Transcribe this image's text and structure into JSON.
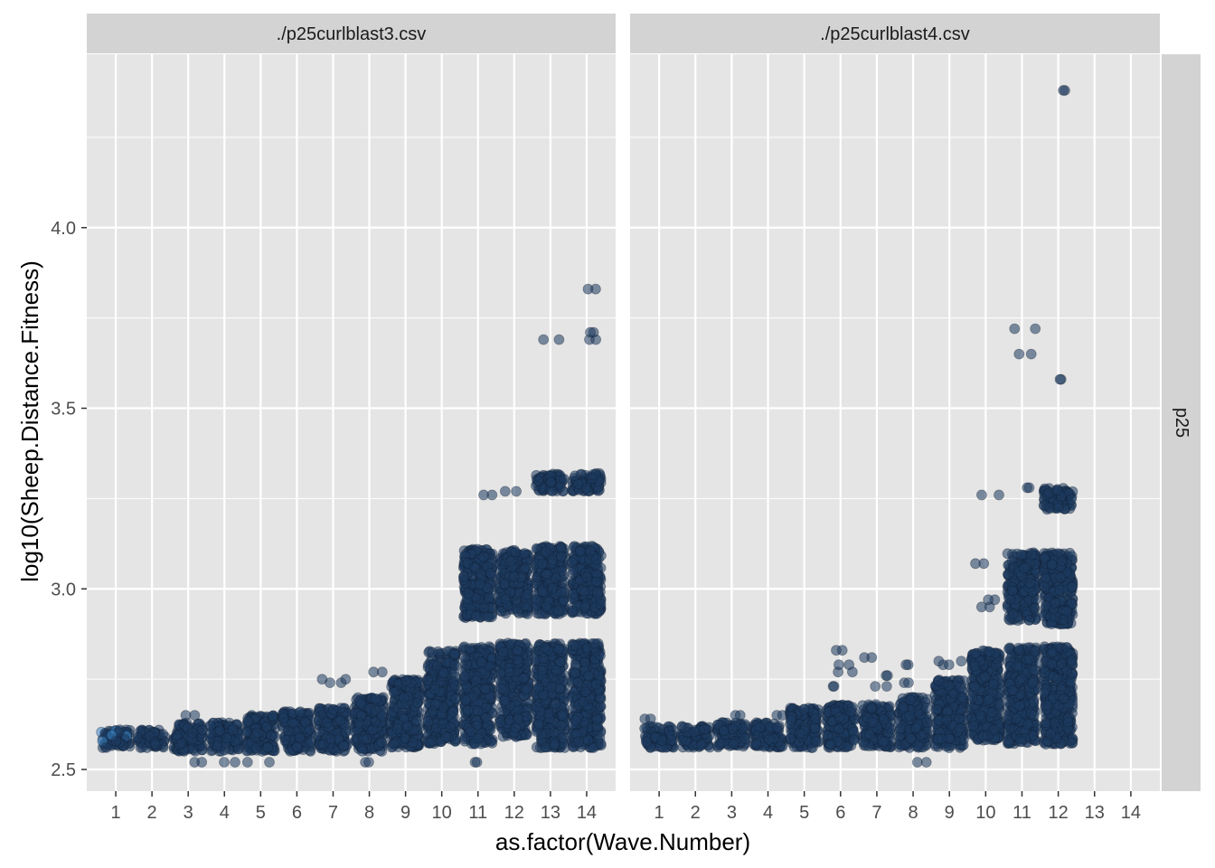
{
  "chart_data": {
    "type": "scatter",
    "subtype": "jittered strip plot, faceted",
    "xlabel": "as.factor(Wave.Number)",
    "ylabel": "log10(Sheep.Distance.Fitness)",
    "categories": [
      "1",
      "2",
      "3",
      "4",
      "5",
      "6",
      "7",
      "8",
      "9",
      "10",
      "11",
      "12",
      "13",
      "14"
    ],
    "ylim": [
      2.44,
      4.48
    ],
    "yticks": [
      2.5,
      3.0,
      3.5,
      4.0
    ],
    "ytick_labels": [
      "2.5",
      "3.0",
      "3.5",
      "4.0"
    ],
    "row_facet": "p25",
    "point_color": "#1e3a5f",
    "point_color_light": "#3d85c6",
    "point_opacity": 0.55,
    "panel_background": "#e5e5e5",
    "strip_background": "#d3d3d3",
    "grid_color": "#ffffff",
    "panels": [
      {
        "title": "./p25curlblast3.csv",
        "series": [
          {
            "wave": 1,
            "bands": [
              [
                2.56,
                2.61
              ]
            ],
            "outliers": []
          },
          {
            "wave": 2,
            "bands": [
              [
                2.56,
                2.61
              ]
            ],
            "outliers": []
          },
          {
            "wave": 3,
            "bands": [
              [
                2.55,
                2.63
              ]
            ],
            "outliers": [
              2.52,
              2.65
            ]
          },
          {
            "wave": 4,
            "bands": [
              [
                2.55,
                2.63
              ]
            ],
            "outliers": [
              2.52
            ]
          },
          {
            "wave": 5,
            "bands": [
              [
                2.55,
                2.65
              ]
            ],
            "outliers": [
              2.52
            ]
          },
          {
            "wave": 6,
            "bands": [
              [
                2.55,
                2.66
              ]
            ],
            "outliers": []
          },
          {
            "wave": 7,
            "bands": [
              [
                2.55,
                2.67
              ]
            ],
            "outliers": [
              2.74,
              2.75
            ]
          },
          {
            "wave": 8,
            "bands": [
              [
                2.55,
                2.7
              ]
            ],
            "outliers": [
              2.52,
              2.77
            ]
          },
          {
            "wave": 9,
            "bands": [
              [
                2.56,
                2.75
              ]
            ],
            "outliers": []
          },
          {
            "wave": 10,
            "bands": [
              [
                2.57,
                2.83
              ]
            ],
            "outliers": []
          },
          {
            "wave": 11,
            "bands": [
              [
                2.57,
                2.84
              ],
              [
                2.92,
                3.11
              ]
            ],
            "outliers": [
              2.52,
              3.26
            ]
          },
          {
            "wave": 12,
            "bands": [
              [
                2.59,
                2.85
              ],
              [
                2.93,
                3.11
              ]
            ],
            "outliers": [
              3.27
            ]
          },
          {
            "wave": 13,
            "bands": [
              [
                2.56,
                2.85
              ],
              [
                2.93,
                3.12
              ],
              [
                3.27,
                3.32
              ]
            ],
            "outliers": [
              3.69
            ]
          },
          {
            "wave": 14,
            "bands": [
              [
                2.56,
                2.85
              ],
              [
                2.93,
                3.12
              ],
              [
                3.27,
                3.32
              ]
            ],
            "outliers": [
              3.69,
              3.71,
              3.83
            ]
          }
        ]
      },
      {
        "title": "./p25curlblast4.csv",
        "series": [
          {
            "wave": 1,
            "bands": [
              [
                2.56,
                2.62
              ]
            ],
            "outliers": [
              2.64
            ]
          },
          {
            "wave": 2,
            "bands": [
              [
                2.56,
                2.62
              ]
            ],
            "outliers": []
          },
          {
            "wave": 3,
            "bands": [
              [
                2.56,
                2.63
              ]
            ],
            "outliers": [
              2.65
            ]
          },
          {
            "wave": 4,
            "bands": [
              [
                2.56,
                2.63
              ]
            ],
            "outliers": [
              2.65
            ]
          },
          {
            "wave": 5,
            "bands": [
              [
                2.56,
                2.67
              ]
            ],
            "outliers": []
          },
          {
            "wave": 6,
            "bands": [
              [
                2.56,
                2.68
              ]
            ],
            "outliers": [
              2.73,
              2.77,
              2.79,
              2.83
            ]
          },
          {
            "wave": 7,
            "bands": [
              [
                2.56,
                2.68
              ]
            ],
            "outliers": [
              2.73,
              2.76,
              2.81
            ]
          },
          {
            "wave": 8,
            "bands": [
              [
                2.56,
                2.7
              ]
            ],
            "outliers": [
              2.52,
              2.74,
              2.79
            ]
          },
          {
            "wave": 9,
            "bands": [
              [
                2.56,
                2.75
              ]
            ],
            "outliers": [
              2.79,
              2.8
            ]
          },
          {
            "wave": 10,
            "bands": [
              [
                2.58,
                2.83
              ]
            ],
            "outliers": [
              2.95,
              2.97,
              3.07,
              3.26
            ]
          },
          {
            "wave": 11,
            "bands": [
              [
                2.57,
                2.84
              ],
              [
                2.91,
                3.1
              ]
            ],
            "outliers": [
              3.28,
              3.65,
              3.72
            ]
          },
          {
            "wave": 12,
            "bands": [
              [
                2.57,
                2.84
              ],
              [
                2.9,
                3.1
              ],
              [
                3.22,
                3.28
              ]
            ],
            "outliers": [
              3.58,
              4.38
            ]
          },
          {
            "wave": 13,
            "bands": [],
            "outliers": []
          },
          {
            "wave": 14,
            "bands": [],
            "outliers": []
          }
        ]
      }
    ]
  }
}
